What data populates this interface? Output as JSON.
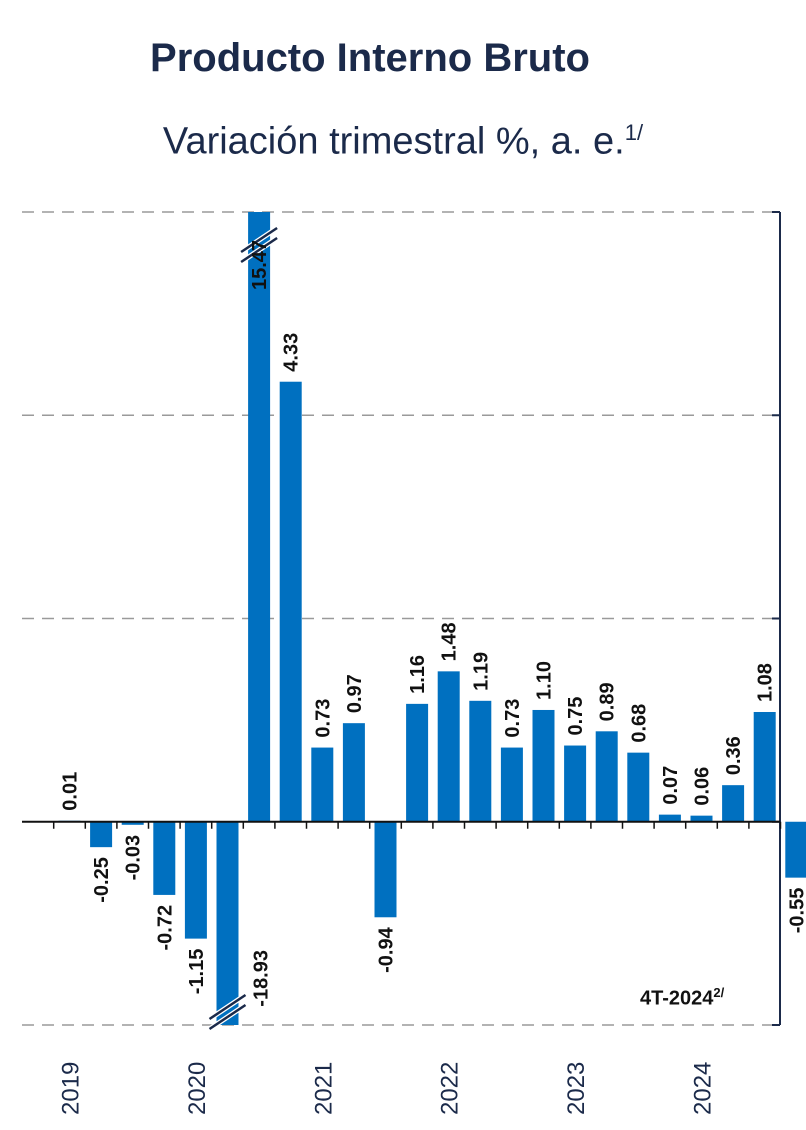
{
  "chart_data": {
    "type": "bar",
    "title": "Producto Interno Bruto",
    "subtitle": "Variación trimestral %, a. e.",
    "subtitle_sup": "1/",
    "note": "4T-2024",
    "note_sup": "2/",
    "x": [
      "2019-T1",
      "2019-T2",
      "2019-T3",
      "2019-T4",
      "2020-T1",
      "2020-T2",
      "2020-T3",
      "2020-T4",
      "2021-T1",
      "2021-T2",
      "2021-T3",
      "2021-T4",
      "2022-T1",
      "2022-T2",
      "2022-T3",
      "2022-T4",
      "2023-T1",
      "2023-T2",
      "2023-T3",
      "2023-T4",
      "2024-T1",
      "2024-T2",
      "2024-T3",
      "2024-T4"
    ],
    "values": [
      0.01,
      -0.25,
      -0.03,
      -0.72,
      -1.15,
      -18.93,
      15.47,
      4.33,
      0.73,
      0.97,
      -0.94,
      1.16,
      1.48,
      1.19,
      0.73,
      1.1,
      0.75,
      0.89,
      0.68,
      0.07,
      0.06,
      0.36,
      1.08,
      -0.55
    ],
    "labels": [
      "0.01",
      "-0.25",
      "-0.03",
      "-0.72",
      "-1.15",
      "-18.93",
      "15.47",
      "4.33",
      "0.73",
      "0.97",
      "-0.94",
      "1.16",
      "1.48",
      "1.19",
      "0.73",
      "1.10",
      "0.75",
      "0.89",
      "0.68",
      "0.07",
      "0.06",
      "0.36",
      "1.08",
      "-0.55"
    ],
    "year_labels": [
      "2019",
      "2020",
      "2021",
      "2022",
      "2023",
      "2024"
    ],
    "ylim": [
      -2,
      6
    ],
    "axis_break": true,
    "grid": true,
    "bar_color": "#0070c0",
    "text_color": "#1b2a4a"
  }
}
